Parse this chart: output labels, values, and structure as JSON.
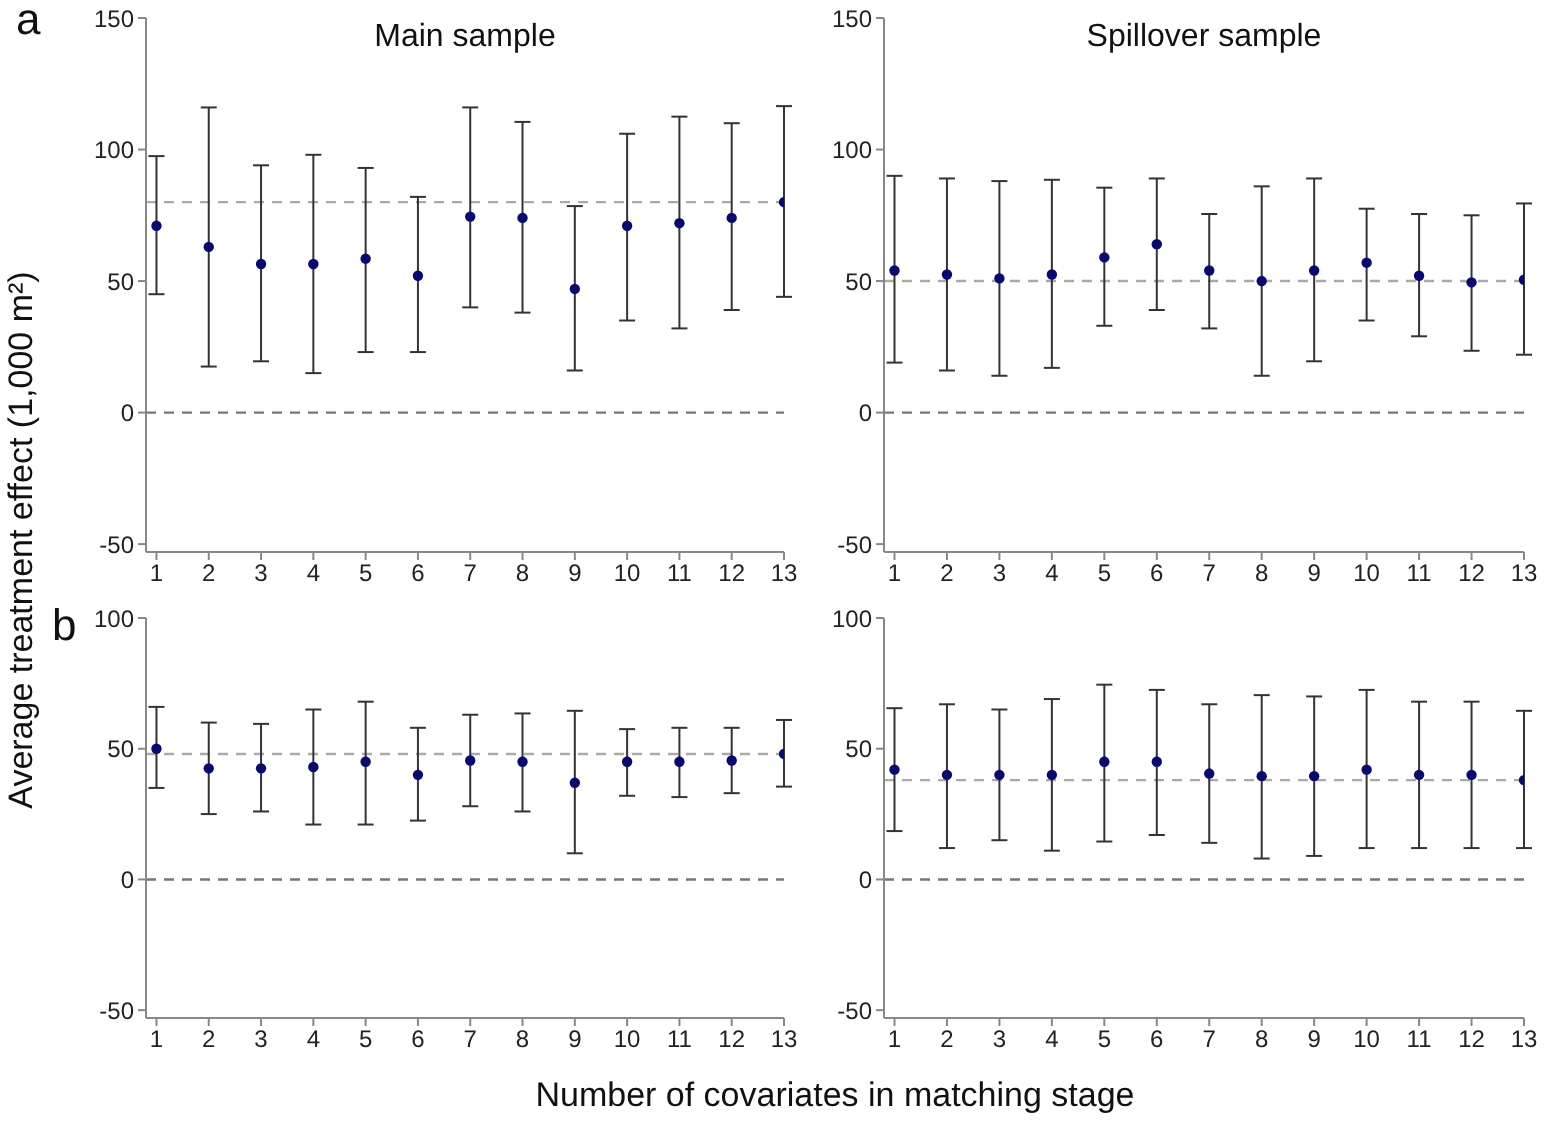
{
  "chart_data": [
    {
      "type": "scatter",
      "title": "Main sample",
      "ylabel": "Average treatment effect (1,000 m²)",
      "annotations": [
        "a"
      ],
      "marker": "circle",
      "color": "#0a0a6e",
      "x": [
        1,
        2,
        3,
        4,
        5,
        6,
        7,
        8,
        9,
        10,
        11,
        12,
        13
      ],
      "xlim": [
        0.8,
        13
      ],
      "xticks": [
        1,
        2,
        3,
        4,
        5,
        6,
        7,
        8,
        9,
        10,
        11,
        12,
        13
      ],
      "ylim": [
        -53,
        150
      ],
      "yticks": [
        -50,
        0,
        50,
        100,
        150
      ],
      "values": [
        71,
        63,
        56.5,
        56.5,
        58.5,
        52,
        74.5,
        74,
        47,
        71,
        72,
        74,
        80
      ],
      "errors": [
        [
          45,
          97.5
        ],
        [
          17.5,
          116
        ],
        [
          19.5,
          94
        ],
        [
          15,
          98
        ],
        [
          23,
          93
        ],
        [
          23,
          82
        ],
        [
          40,
          116
        ],
        [
          38,
          110.5
        ],
        [
          16,
          78.5
        ],
        [
          35,
          106
        ],
        [
          32,
          112.5
        ],
        [
          39,
          110
        ],
        [
          44,
          116.5
        ]
      ],
      "ref_lines": [
        {
          "axis": "y",
          "value": 80,
          "color": "#aaaaaa",
          "line_style": "dashed"
        },
        {
          "axis": "y",
          "value": 0,
          "color": "#777777",
          "line_style": "dashed"
        }
      ]
    },
    {
      "type": "scatter",
      "title": "Spillover sample",
      "marker": "circle",
      "color": "#0a0a6e",
      "x": [
        1,
        2,
        3,
        4,
        5,
        6,
        7,
        8,
        9,
        10,
        11,
        12,
        13
      ],
      "xlim": [
        0.8,
        13
      ],
      "xticks": [
        1,
        2,
        3,
        4,
        5,
        6,
        7,
        8,
        9,
        10,
        11,
        12,
        13
      ],
      "ylim": [
        -53,
        150
      ],
      "yticks": [
        -50,
        0,
        50,
        100,
        150
      ],
      "values": [
        54,
        52.5,
        51,
        52.5,
        59,
        64,
        54,
        50,
        54,
        57,
        52,
        49.5,
        50.5
      ],
      "errors": [
        [
          19,
          90
        ],
        [
          16,
          89
        ],
        [
          14,
          88
        ],
        [
          17,
          88.5
        ],
        [
          33,
          85.5
        ],
        [
          39,
          89
        ],
        [
          32,
          75.5
        ],
        [
          14,
          86
        ],
        [
          19.5,
          89
        ],
        [
          35,
          77.5
        ],
        [
          29,
          75.5
        ],
        [
          23.5,
          75
        ],
        [
          22,
          79.5
        ]
      ],
      "ref_lines": [
        {
          "axis": "y",
          "value": 50,
          "color": "#aaaaaa",
          "line_style": "dashed"
        },
        {
          "axis": "y",
          "value": 0,
          "color": "#777777",
          "line_style": "dashed"
        }
      ]
    },
    {
      "type": "scatter",
      "xlabel": "Number of covariates in matching stage",
      "annotations": [
        "b"
      ],
      "marker": "circle",
      "color": "#0a0a6e",
      "x": [
        1,
        2,
        3,
        4,
        5,
        6,
        7,
        8,
        9,
        10,
        11,
        12,
        13
      ],
      "xlim": [
        0.8,
        13
      ],
      "xticks": [
        1,
        2,
        3,
        4,
        5,
        6,
        7,
        8,
        9,
        10,
        11,
        12,
        13
      ],
      "ylim": [
        -53,
        100
      ],
      "yticks": [
        -50,
        0,
        50,
        100
      ],
      "values": [
        50,
        42.5,
        42.5,
        43,
        45,
        40,
        45.5,
        45,
        37,
        45,
        45,
        45.5,
        48
      ],
      "errors": [
        [
          35,
          66
        ],
        [
          25,
          60
        ],
        [
          26,
          59.5
        ],
        [
          21,
          65
        ],
        [
          21,
          68
        ],
        [
          22.5,
          58
        ],
        [
          28,
          63
        ],
        [
          26,
          63.5
        ],
        [
          10,
          64.5
        ],
        [
          32,
          57.5
        ],
        [
          31.5,
          58
        ],
        [
          33,
          58
        ],
        [
          35.5,
          61
        ]
      ],
      "ref_lines": [
        {
          "axis": "y",
          "value": 48,
          "color": "#aaaaaa",
          "line_style": "dashed"
        },
        {
          "axis": "y",
          "value": 0,
          "color": "#777777",
          "line_style": "dashed"
        }
      ]
    },
    {
      "type": "scatter",
      "marker": "circle",
      "color": "#0a0a6e",
      "x": [
        1,
        2,
        3,
        4,
        5,
        6,
        7,
        8,
        9,
        10,
        11,
        12,
        13
      ],
      "xlim": [
        0.8,
        13
      ],
      "xticks": [
        1,
        2,
        3,
        4,
        5,
        6,
        7,
        8,
        9,
        10,
        11,
        12,
        13
      ],
      "ylim": [
        -53,
        100
      ],
      "yticks": [
        -50,
        0,
        50,
        100
      ],
      "values": [
        42,
        40,
        40,
        40,
        45,
        45,
        40.5,
        39.5,
        39.5,
        42,
        40,
        40,
        38
      ],
      "errors": [
        [
          18.5,
          65.5
        ],
        [
          12,
          67
        ],
        [
          15,
          65
        ],
        [
          11,
          69
        ],
        [
          14.5,
          74.5
        ],
        [
          17,
          72.5
        ],
        [
          14,
          67
        ],
        [
          8,
          70.5
        ],
        [
          9,
          70
        ],
        [
          12,
          72.5
        ],
        [
          12,
          68
        ],
        [
          12,
          68
        ],
        [
          12,
          64.5
        ]
      ],
      "ref_lines": [
        {
          "axis": "y",
          "value": 38,
          "color": "#aaaaaa",
          "line_style": "dashed"
        },
        {
          "axis": "y",
          "value": 0,
          "color": "#777777",
          "line_style": "dashed"
        }
      ]
    }
  ]
}
